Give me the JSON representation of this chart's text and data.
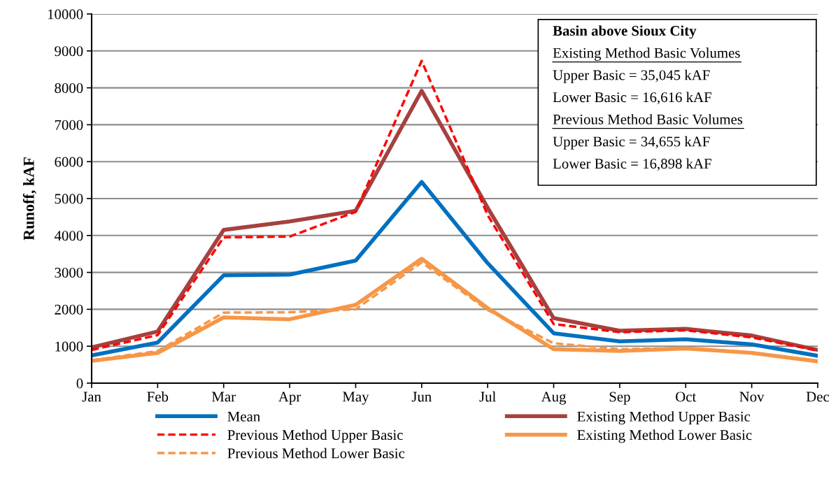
{
  "chart_data": {
    "type": "line",
    "ylabel": "Runoff, kAF",
    "categories": [
      "Jan",
      "Feb",
      "Mar",
      "Apr",
      "May",
      "Jun",
      "Jul",
      "Aug",
      "Sep",
      "Oct",
      "Nov",
      "Dec"
    ],
    "series": [
      {
        "name": "Mean",
        "color": "#0070c0",
        "line_style": "solid",
        "values": [
          750,
          1100,
          2920,
          2940,
          3320,
          5450,
          3250,
          1350,
          1130,
          1190,
          1050,
          740
        ]
      },
      {
        "name": "Existing Method Upper Basic",
        "color": "#a5413f",
        "line_style": "solid",
        "values": [
          970,
          1400,
          4150,
          4380,
          4670,
          7920,
          4750,
          1760,
          1420,
          1470,
          1290,
          900
        ]
      },
      {
        "name": "Previous Method Upper Basic",
        "color": "#ff0000",
        "line_style": "dashed",
        "values": [
          900,
          1300,
          3950,
          3970,
          4640,
          8730,
          4550,
          1600,
          1380,
          1430,
          1240,
          880
        ]
      },
      {
        "name": "Existing Method Lower Basic",
        "color": "#f79646",
        "line_style": "solid",
        "values": [
          600,
          820,
          1780,
          1730,
          2120,
          3370,
          2030,
          920,
          870,
          940,
          820,
          590
        ]
      },
      {
        "name": "Previous Method Lower Basic",
        "color": "#f79646",
        "line_style": "dashed",
        "values": [
          620,
          870,
          1910,
          1920,
          2000,
          3270,
          1980,
          1080,
          920,
          950,
          830,
          600
        ]
      }
    ],
    "ylim": [
      0,
      10000
    ],
    "yticks": [
      0,
      1000,
      2000,
      3000,
      4000,
      5000,
      6000,
      7000,
      8000,
      9000,
      10000
    ],
    "grid": "y",
    "legend": "bottom",
    "marker": "none",
    "annotations": [
      "Basin above Sioux City",
      "Existing Method Basic Volumes",
      "Upper Basic = 35,045 kAF",
      "Lower Basic = 16,616 kAF",
      "Previous Method Basic Volumes",
      "Upper Basic = 34,655 kAF",
      "Lower Basic = 16,898 kAF"
    ]
  }
}
